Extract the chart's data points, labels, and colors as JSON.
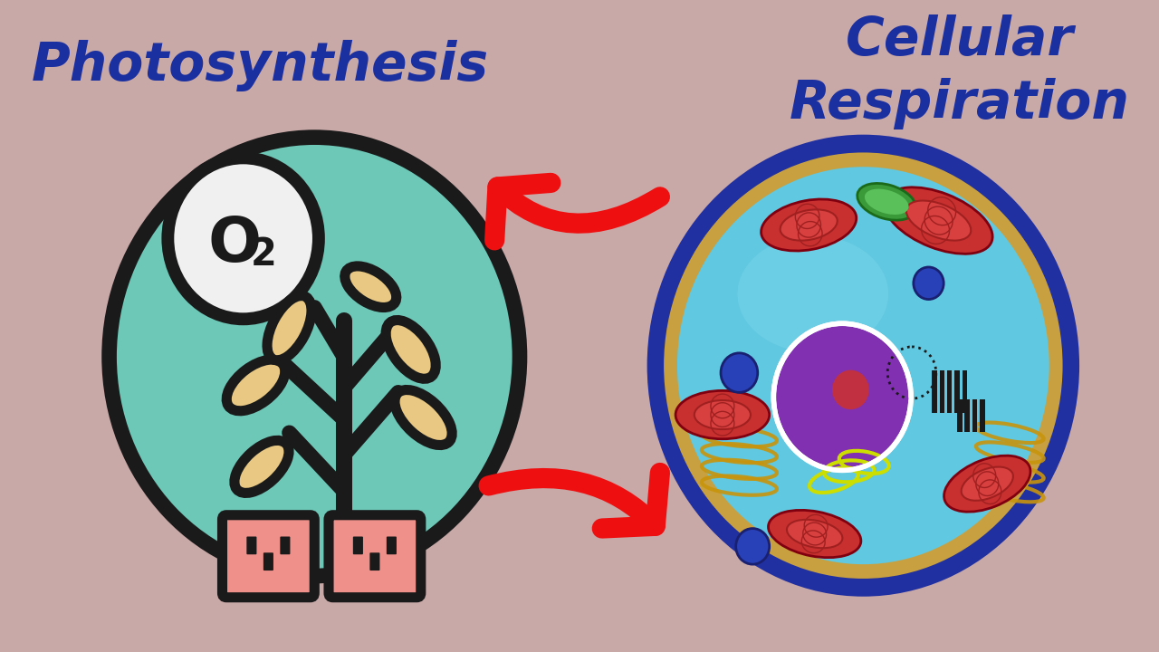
{
  "bg_color": "#C9A8A8",
  "title_left": "Photosynthesis",
  "title_right": "Cellular\nRespiration",
  "title_color": "#1a2fa0",
  "title_fontsize": 42,
  "title_fontstyle": "bold",
  "teal_circle_color": "#6EC8B8",
  "o2_circle_color": "#F0F0F0",
  "leaf_color": "#E8C882",
  "outline_color": "#1a1a1a",
  "pot_color": "#F0908A",
  "cell_outer_color": "#2030A0",
  "cell_gold_color": "#C8A040",
  "cell_blue_color": "#60C8E0",
  "nucleus_color": "#8030B0",
  "mito_color": "#C83030",
  "chloro_color": "#40A040",
  "vacuole_color": "#2840B8",
  "arrow_color": "#EE1010"
}
